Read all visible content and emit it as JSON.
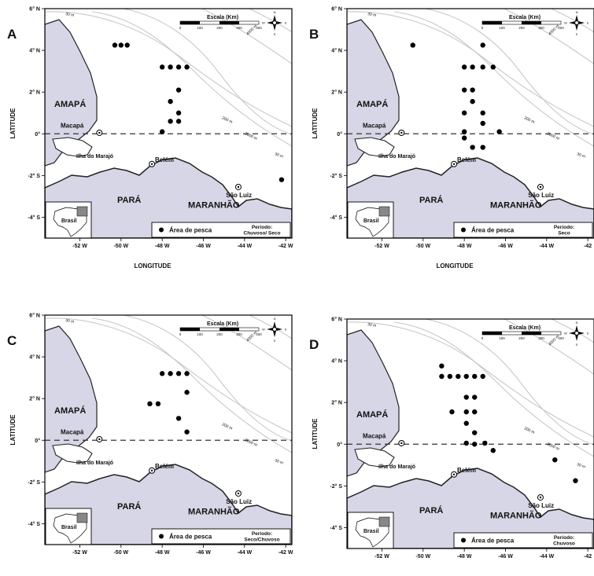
{
  "colors": {
    "land": "#d7d6e6",
    "coast": "#222222",
    "isobath": "#c9c9c9",
    "point": "#000000"
  },
  "axis": {
    "x_title": "LONGITUDE",
    "y_title": "LATITUDE"
  },
  "map_text": {
    "amapa": "AMAPÁ",
    "macapa": "Macapá",
    "marajo": "Ilha do Marajó",
    "belem": "Belém",
    "para": "PARÁ",
    "maranhao": "MARANHÃO",
    "saoluiz": "São Luiz",
    "brasil": "Brasil",
    "scale_title": "Escala (Km)",
    "scale_ticks": [
      "0",
      "100",
      "200",
      "300",
      "400"
    ],
    "isobath_labels": [
      "30 m",
      "200 m",
      "3000 m",
      "4000 m"
    ],
    "legend_label": "Área de pesca",
    "compass": [
      "N",
      "S",
      "E",
      "W"
    ]
  },
  "maps": [
    {
      "letter": "A",
      "period_title": "Período:",
      "period_value": "Chuvoso/ Seco",
      "show_x_title": true,
      "lat_ticks": [
        {
          "v": 6,
          "t": "6° N"
        },
        {
          "v": 4,
          "t": "4° N"
        },
        {
          "v": 2,
          "t": "2° N"
        },
        {
          "v": 0,
          "t": "0°"
        },
        {
          "v": -2,
          "t": "-2° S"
        },
        {
          "v": -4,
          "t": "-4° S"
        }
      ],
      "lon_ticks": [
        {
          "v": -52,
          "t": "-52 W"
        },
        {
          "v": -50,
          "t": "-50 W"
        },
        {
          "v": -48,
          "t": "-48 W"
        },
        {
          "v": -46,
          "t": "-46 W"
        },
        {
          "v": -44,
          "t": "-44 W"
        },
        {
          "v": -42,
          "t": "-42 W"
        }
      ],
      "points": [
        [
          -50.3,
          4.25
        ],
        [
          -50.0,
          4.25
        ],
        [
          -49.7,
          4.25
        ],
        [
          -48.0,
          3.2
        ],
        [
          -47.6,
          3.2
        ],
        [
          -47.2,
          3.2
        ],
        [
          -46.8,
          3.2
        ],
        [
          -47.2,
          2.1
        ],
        [
          -47.6,
          1.55
        ],
        [
          -47.6,
          0.6
        ],
        [
          -47.2,
          0.6
        ],
        [
          -47.2,
          1.0
        ],
        [
          -48.0,
          0.1
        ],
        [
          -42.2,
          -2.2
        ]
      ]
    },
    {
      "letter": "B",
      "period_title": "Período:",
      "period_value": "Seco",
      "show_x_title": true,
      "lat_ticks": [
        {
          "v": 6,
          "t": "6° N"
        },
        {
          "v": 4,
          "t": "4° N"
        },
        {
          "v": 2,
          "t": "2° N"
        },
        {
          "v": 0,
          "t": "0°"
        },
        {
          "v": -2,
          "t": "-2° S"
        },
        {
          "v": -4,
          "t": "-4° S"
        }
      ],
      "lon_ticks": [
        {
          "v": -52,
          "t": "-52 W"
        },
        {
          "v": -50,
          "t": "-50 W"
        },
        {
          "v": -48,
          "t": "-48 W"
        },
        {
          "v": -46,
          "t": "-46 W"
        },
        {
          "v": -44,
          "t": "-44 W"
        },
        {
          "v": -42,
          "t": "-42"
        }
      ],
      "points": [
        [
          -50.5,
          4.25
        ],
        [
          -47.1,
          4.25
        ],
        [
          -48.0,
          3.2
        ],
        [
          -47.6,
          3.2
        ],
        [
          -47.1,
          3.2
        ],
        [
          -46.6,
          3.2
        ],
        [
          -48.0,
          2.1
        ],
        [
          -47.6,
          2.1
        ],
        [
          -47.6,
          1.55
        ],
        [
          -48.0,
          1.0
        ],
        [
          -47.1,
          1.0
        ],
        [
          -47.1,
          0.5
        ],
        [
          -48.0,
          0.1
        ],
        [
          -46.3,
          0.1
        ],
        [
          -47.6,
          -0.65
        ],
        [
          -47.1,
          -0.65
        ],
        [
          -48.0,
          -0.2
        ]
      ]
    },
    {
      "letter": "C",
      "period_title": "Período:",
      "period_value": "Seco/Chuvoso",
      "show_x_title": false,
      "lat_ticks": [
        {
          "v": 6,
          "t": "6° N"
        },
        {
          "v": 4,
          "t": "4° N"
        },
        {
          "v": 2,
          "t": "2° N"
        },
        {
          "v": 0,
          "t": "0°"
        },
        {
          "v": -2,
          "t": "-2° S"
        },
        {
          "v": -4,
          "t": "-4° S"
        }
      ],
      "lon_ticks": [
        {
          "v": -52,
          "t": "-52 W"
        },
        {
          "v": -50,
          "t": "-50 W"
        },
        {
          "v": -48,
          "t": "-48 W"
        },
        {
          "v": -46,
          "t": "-46 W"
        },
        {
          "v": -44,
          "t": "-44 W"
        },
        {
          "v": -42,
          "t": "-42 W"
        }
      ],
      "points": [
        [
          -48.0,
          3.2
        ],
        [
          -47.6,
          3.2
        ],
        [
          -47.2,
          3.2
        ],
        [
          -46.8,
          3.2
        ],
        [
          -46.8,
          2.3
        ],
        [
          -48.6,
          1.75
        ],
        [
          -48.2,
          1.75
        ],
        [
          -47.2,
          1.05
        ],
        [
          -46.8,
          0.4
        ]
      ]
    },
    {
      "letter": "D",
      "period_title": "Período:",
      "period_value": "Chuvoso",
      "show_x_title": false,
      "lat_ticks": [
        {
          "v": 6,
          "t": "6° N"
        },
        {
          "v": 4,
          "t": "4° N"
        },
        {
          "v": 2,
          "t": "2° N"
        },
        {
          "v": 0,
          "t": "0°"
        },
        {
          "v": -2,
          "t": "-2° S"
        },
        {
          "v": -4,
          "t": "-4° S"
        }
      ],
      "lon_ticks": [
        {
          "v": -52,
          "t": "-52 W"
        },
        {
          "v": -50,
          "t": "-50 W"
        },
        {
          "v": -48,
          "t": "-48 W"
        },
        {
          "v": -46,
          "t": "-46 W"
        },
        {
          "v": -44,
          "t": "-44 W"
        },
        {
          "v": -42,
          "t": "-42"
        }
      ],
      "points": [
        [
          -49.1,
          3.75
        ],
        [
          -49.1,
          3.25
        ],
        [
          -48.7,
          3.25
        ],
        [
          -48.3,
          3.25
        ],
        [
          -47.9,
          3.25
        ],
        [
          -47.5,
          3.25
        ],
        [
          -47.1,
          3.25
        ],
        [
          -47.9,
          2.25
        ],
        [
          -47.5,
          2.25
        ],
        [
          -48.6,
          1.55
        ],
        [
          -47.9,
          1.55
        ],
        [
          -47.5,
          1.55
        ],
        [
          -47.9,
          1.0
        ],
        [
          -47.5,
          0.55
        ],
        [
          -47.9,
          0.05
        ],
        [
          -47.5,
          0.0
        ],
        [
          -47.0,
          0.05
        ],
        [
          -46.6,
          -0.3
        ],
        [
          -43.6,
          -0.75
        ],
        [
          -42.6,
          -1.75
        ]
      ]
    }
  ]
}
